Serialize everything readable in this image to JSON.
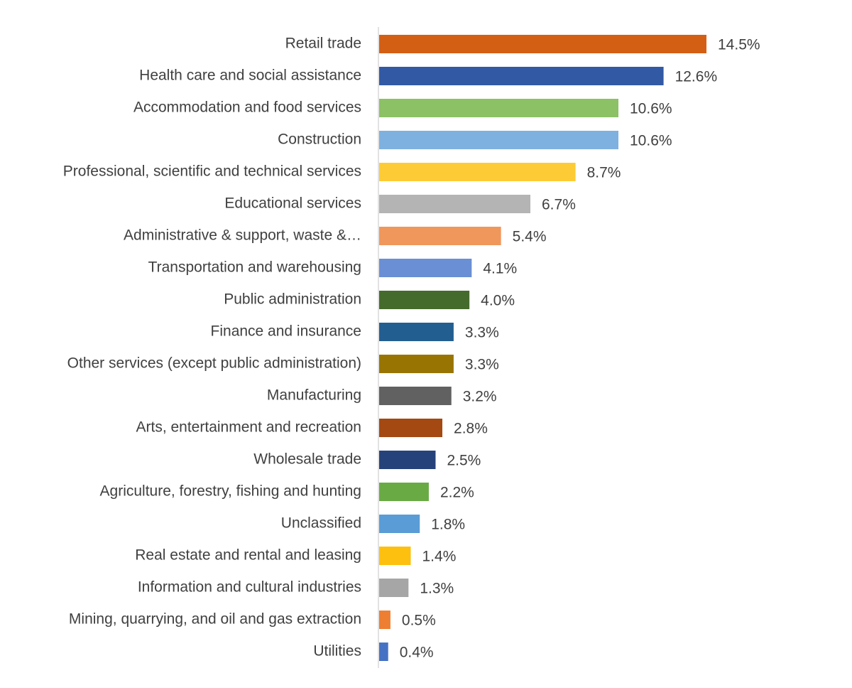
{
  "chart_data": {
    "type": "bar",
    "orientation": "horizontal",
    "categories": [
      "Retail trade",
      "Health care and social assistance",
      "Accommodation and food services",
      "Construction",
      "Professional, scientific and technical services",
      "Educational services",
      "Administrative & support, waste &…",
      "Transportation and warehousing",
      "Public administration",
      "Finance and insurance",
      "Other services (except public administration)",
      "Manufacturing",
      "Arts, entertainment and recreation",
      "Wholesale trade",
      "Agriculture, forestry, fishing and hunting",
      "Unclassified",
      "Real estate and rental and leasing",
      "Information and cultural industries",
      "Mining, quarrying, and oil and gas extraction",
      "Utilities"
    ],
    "values": [
      14.5,
      12.6,
      10.6,
      10.6,
      8.7,
      6.7,
      5.4,
      4.1,
      4.0,
      3.3,
      3.3,
      3.2,
      2.8,
      2.5,
      2.2,
      1.8,
      1.4,
      1.3,
      0.5,
      0.4
    ],
    "value_labels": [
      "14.5%",
      "12.6%",
      "10.6%",
      "10.6%",
      "8.7%",
      "6.7%",
      "5.4%",
      "4.1%",
      "4.0%",
      "3.3%",
      "3.3%",
      "3.2%",
      "2.8%",
      "2.5%",
      "2.2%",
      "1.8%",
      "1.4%",
      "1.3%",
      "0.5%",
      "0.4%"
    ],
    "colors": [
      "#D35F15",
      "#3259A4",
      "#8CC166",
      "#7EB1DF",
      "#FDCB35",
      "#B4B4B4",
      "#F0975C",
      "#6A8FD4",
      "#456B2C",
      "#235E91",
      "#987503",
      "#616161",
      "#A34911",
      "#26427A",
      "#6AAA44",
      "#5A9CD6",
      "#FEC00E",
      "#A6A6A6",
      "#EE7E32",
      "#4672C4"
    ],
    "xlim": [
      0,
      14.5
    ],
    "grid": false,
    "legend": "none",
    "title": "",
    "xlabel": "",
    "ylabel": ""
  }
}
